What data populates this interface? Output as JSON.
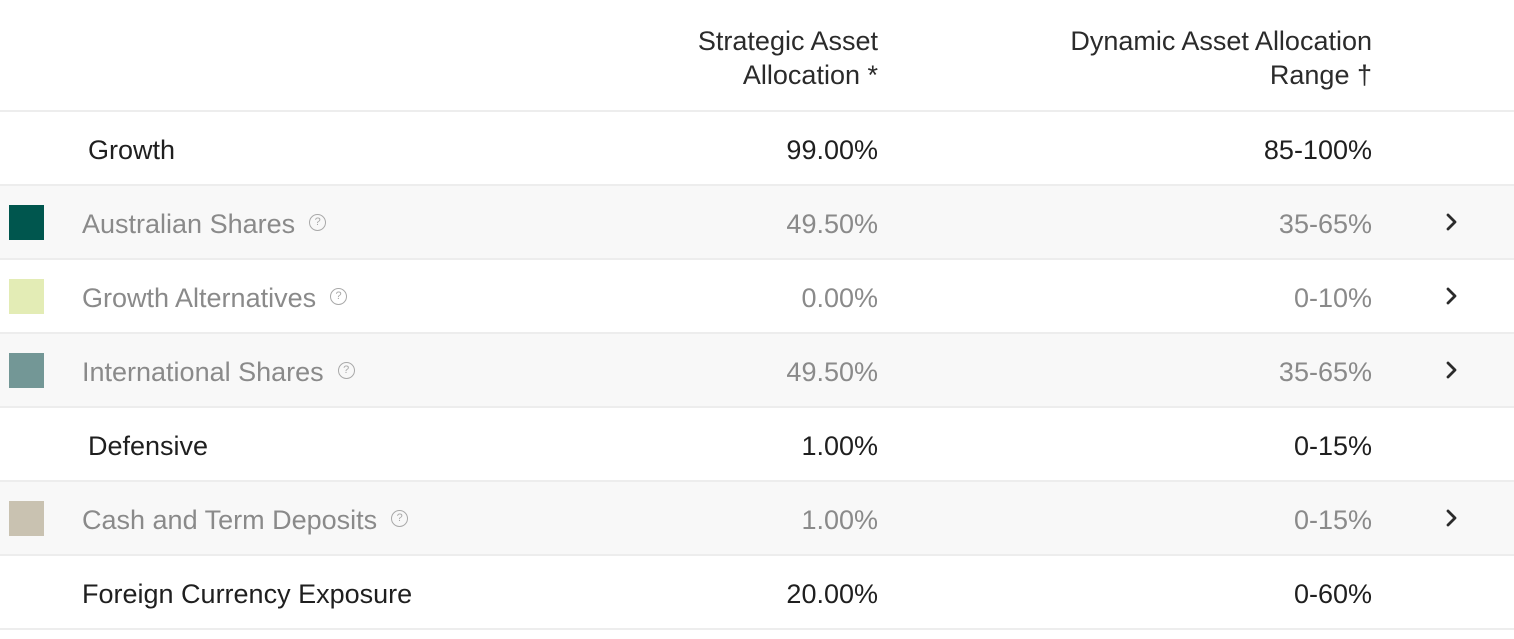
{
  "header": {
    "saa_line1": "Strategic Asset",
    "saa_line2": "Allocation *",
    "daa_line1": "Dynamic Asset Allocation",
    "daa_line2": "Range †"
  },
  "groups": {
    "growth": {
      "label": "Growth",
      "saa": "99.00%",
      "daa": "85-100%"
    },
    "defensive": {
      "label": "Defensive",
      "saa": "1.00%",
      "daa": "0-15%"
    }
  },
  "assets": [
    {
      "label": "Australian Shares",
      "saa": "49.50%",
      "daa": "35-65%",
      "color": "#00564e"
    },
    {
      "label": "Growth Alternatives",
      "saa": "0.00%",
      "daa": "0-10%",
      "color": "#e3ecb5"
    },
    {
      "label": "International Shares",
      "saa": "49.50%",
      "daa": "35-65%",
      "color": "#739796"
    },
    {
      "label": "Cash and Term Deposits",
      "saa": "1.00%",
      "daa": "0-15%",
      "color": "#c9c2b1"
    }
  ],
  "foreign_currency": {
    "label": "Foreign Currency Exposure",
    "saa": "20.00%",
    "daa": "0-60%"
  },
  "icons": {
    "help": "question-circle-icon",
    "expand": "chevron-right-icon"
  }
}
